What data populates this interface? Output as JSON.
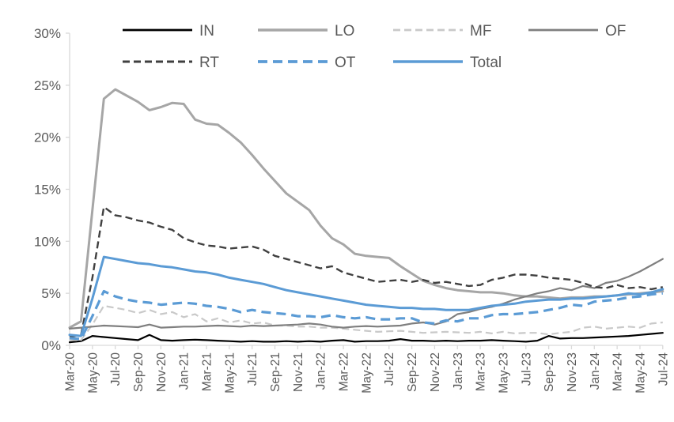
{
  "chart_data": {
    "type": "line",
    "title": "",
    "xlabel": "",
    "ylabel": "",
    "ylim": [
      0,
      30
    ],
    "y_tick_step": 5,
    "y_tick_labels": [
      "0%",
      "5%",
      "10%",
      "15%",
      "20%",
      "25%",
      "30%"
    ],
    "x_tick_step": 2,
    "grid": false,
    "legend_position": "top",
    "axis_color": "#d9d9d9",
    "label_color": "#595959",
    "x": [
      "Mar-20",
      "Apr-20",
      "May-20",
      "Jun-20",
      "Jul-20",
      "Aug-20",
      "Sep-20",
      "Oct-20",
      "Nov-20",
      "Dec-20",
      "Jan-21",
      "Feb-21",
      "Mar-21",
      "Apr-21",
      "May-21",
      "Jun-21",
      "Jul-21",
      "Aug-21",
      "Sep-21",
      "Oct-21",
      "Nov-21",
      "Dec-21",
      "Jan-22",
      "Feb-22",
      "Mar-22",
      "Apr-22",
      "May-22",
      "Jun-22",
      "Jul-22",
      "Aug-22",
      "Sep-22",
      "Oct-22",
      "Nov-22",
      "Dec-22",
      "Jan-23",
      "Feb-23",
      "Mar-23",
      "Apr-23",
      "May-23",
      "Jun-23",
      "Jul-23",
      "Aug-23",
      "Sep-23",
      "Oct-23",
      "Nov-23",
      "Dec-23",
      "Jan-24",
      "Feb-24",
      "Mar-24",
      "Apr-24",
      "May-24",
      "Jun-24",
      "Jul-24"
    ],
    "x_tick_labels_shown": [
      "Mar-20",
      "May-20",
      "Jul-20",
      "Sep-20",
      "Nov-20",
      "Jan-21",
      "Mar-21",
      "May-21",
      "Jul-21",
      "Sep-21",
      "Nov-21",
      "Jan-22",
      "Mar-22",
      "May-22",
      "Jul-22",
      "Sep-22",
      "Nov-22",
      "Jan-23",
      "Mar-23",
      "May-23",
      "Jul-23",
      "Sep-23",
      "Nov-23",
      "Jan-24",
      "Mar-24",
      "May-24",
      "Jul-24"
    ],
    "legend_rows": [
      [
        "IN",
        "LO",
        "MF",
        "OF"
      ],
      [
        "RT",
        "OT",
        "Total"
      ]
    ],
    "series": [
      {
        "name": "IN",
        "color": "#000000",
        "dash": "solid",
        "dash_pattern": "none",
        "width": 2.2,
        "values": [
          0.3,
          0.4,
          0.9,
          0.8,
          0.7,
          0.6,
          0.5,
          1.0,
          0.5,
          0.45,
          0.5,
          0.55,
          0.5,
          0.45,
          0.4,
          0.35,
          0.4,
          0.35,
          0.35,
          0.4,
          0.35,
          0.4,
          0.35,
          0.45,
          0.5,
          0.35,
          0.4,
          0.4,
          0.45,
          0.6,
          0.45,
          0.45,
          0.4,
          0.45,
          0.4,
          0.45,
          0.45,
          0.5,
          0.45,
          0.4,
          0.35,
          0.45,
          0.9,
          0.65,
          0.7,
          0.7,
          0.75,
          0.8,
          0.85,
          0.9,
          1.0,
          1.1,
          1.2
        ]
      },
      {
        "name": "LO",
        "color": "#a6a6a6",
        "dash": "solid",
        "dash_pattern": "none",
        "width": 3,
        "values": [
          1.7,
          2.3,
          13.0,
          23.7,
          24.6,
          24.0,
          23.4,
          22.6,
          22.9,
          23.3,
          23.2,
          21.7,
          21.3,
          21.2,
          20.4,
          19.5,
          18.3,
          17.0,
          15.8,
          14.6,
          13.8,
          13.0,
          11.5,
          10.3,
          9.7,
          8.8,
          8.6,
          8.5,
          8.4,
          7.6,
          6.9,
          6.2,
          5.8,
          5.5,
          5.3,
          5.2,
          5.1,
          5.1,
          5.0,
          4.8,
          4.7,
          4.7,
          4.6,
          4.5,
          4.6,
          4.6,
          4.7,
          4.7,
          4.8,
          4.9,
          5.0,
          5.1,
          5.2
        ]
      },
      {
        "name": "MF",
        "color": "#c9c9c9",
        "dash": "dashed",
        "dash_pattern": "9 5",
        "width": 2.2,
        "values": [
          0.5,
          0.5,
          2.0,
          3.8,
          3.6,
          3.4,
          3.1,
          3.4,
          3.0,
          3.2,
          2.7,
          3.0,
          2.3,
          2.6,
          2.2,
          2.4,
          2.1,
          2.2,
          1.9,
          1.9,
          1.8,
          1.8,
          1.7,
          1.7,
          1.6,
          1.5,
          1.4,
          1.3,
          1.35,
          1.4,
          1.3,
          1.2,
          1.25,
          1.3,
          1.25,
          1.2,
          1.3,
          1.15,
          1.3,
          1.15,
          1.2,
          1.2,
          1.05,
          1.2,
          1.3,
          1.7,
          1.8,
          1.6,
          1.7,
          1.8,
          1.7,
          2.1,
          2.2
        ]
      },
      {
        "name": "OF",
        "color": "#7f7f7f",
        "dash": "solid",
        "dash_pattern": "none",
        "width": 2.2,
        "values": [
          1.6,
          1.7,
          1.8,
          1.9,
          1.85,
          1.8,
          1.75,
          2.0,
          1.7,
          1.75,
          1.8,
          1.8,
          1.85,
          1.9,
          1.85,
          1.8,
          1.9,
          1.85,
          1.9,
          1.95,
          2.0,
          2.1,
          2.0,
          1.8,
          1.7,
          1.8,
          1.85,
          1.8,
          1.85,
          1.9,
          2.1,
          2.2,
          2.0,
          2.3,
          3.0,
          3.2,
          3.5,
          3.7,
          4.0,
          4.4,
          4.7,
          5.0,
          5.2,
          5.5,
          5.3,
          5.7,
          5.5,
          6.0,
          6.2,
          6.6,
          7.1,
          7.7,
          8.3
        ]
      },
      {
        "name": "RT",
        "color": "#404040",
        "dash": "dashed",
        "dash_pattern": "9 5",
        "width": 2.4,
        "values": [
          0.8,
          1.0,
          6.5,
          13.3,
          12.5,
          12.3,
          12.0,
          11.8,
          11.4,
          11.1,
          10.3,
          9.9,
          9.6,
          9.5,
          9.3,
          9.4,
          9.5,
          9.2,
          8.6,
          8.3,
          8.0,
          7.7,
          7.4,
          7.6,
          7.0,
          6.7,
          6.4,
          6.1,
          6.2,
          6.3,
          6.1,
          6.3,
          6.0,
          6.1,
          5.9,
          5.7,
          5.8,
          6.3,
          6.5,
          6.8,
          6.8,
          6.7,
          6.5,
          6.4,
          6.3,
          6.0,
          5.6,
          5.5,
          5.8,
          5.5,
          5.6,
          5.4,
          5.6
        ]
      },
      {
        "name": "OT",
        "color": "#5b9bd5",
        "dash": "dashed",
        "dash_pattern": "12 7",
        "width": 3.2,
        "values": [
          0.7,
          0.6,
          2.8,
          5.2,
          4.7,
          4.4,
          4.2,
          4.1,
          3.9,
          4.0,
          4.1,
          4.0,
          3.8,
          3.7,
          3.5,
          3.2,
          3.4,
          3.2,
          3.1,
          3.0,
          2.8,
          2.8,
          2.7,
          2.9,
          2.7,
          2.6,
          2.7,
          2.5,
          2.5,
          2.6,
          2.6,
          2.2,
          2.1,
          2.4,
          2.3,
          2.6,
          2.6,
          2.9,
          3.0,
          3.0,
          3.1,
          3.2,
          3.4,
          3.6,
          3.9,
          3.8,
          4.2,
          4.3,
          4.4,
          4.6,
          4.7,
          4.9,
          5.0
        ]
      },
      {
        "name": "Total",
        "color": "#5b9bd5",
        "dash": "solid",
        "dash_pattern": "none",
        "width": 3,
        "values": [
          1.0,
          0.9,
          4.5,
          8.5,
          8.3,
          8.1,
          7.9,
          7.8,
          7.6,
          7.5,
          7.3,
          7.1,
          7.0,
          6.8,
          6.5,
          6.3,
          6.1,
          5.9,
          5.6,
          5.3,
          5.1,
          4.9,
          4.7,
          4.5,
          4.3,
          4.1,
          3.9,
          3.8,
          3.7,
          3.6,
          3.6,
          3.5,
          3.5,
          3.4,
          3.4,
          3.4,
          3.6,
          3.8,
          3.9,
          4.0,
          4.2,
          4.3,
          4.4,
          4.4,
          4.5,
          4.5,
          4.6,
          4.7,
          4.8,
          5.0,
          4.9,
          5.1,
          5.4
        ]
      }
    ]
  }
}
